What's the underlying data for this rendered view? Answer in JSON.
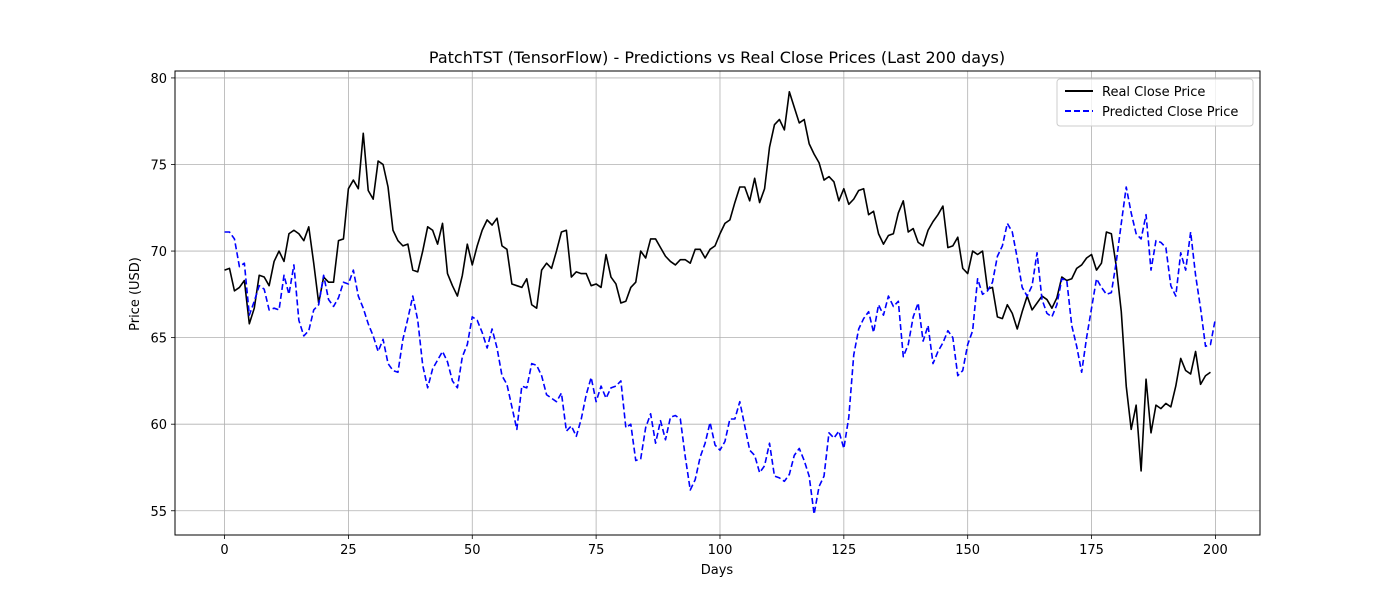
{
  "chart_data": {
    "type": "line",
    "title": "PatchTST (TensorFlow) - Predictions vs Real Close Prices (Last 200 days)",
    "xlabel": "Days",
    "ylabel": "Price (USD)",
    "xlim": [
      -10,
      209
    ],
    "ylim": [
      53.6,
      80.4
    ],
    "xticks": [
      0,
      25,
      50,
      75,
      100,
      125,
      150,
      175,
      200
    ],
    "yticks": [
      55,
      60,
      65,
      70,
      75,
      80
    ],
    "grid": true,
    "legend_position": "top-right",
    "series": [
      {
        "name": "Real Close Price",
        "color": "#000000",
        "style": "solid",
        "values": [
          68.9,
          69.0,
          67.7,
          67.9,
          68.3,
          65.8,
          66.7,
          68.6,
          68.5,
          68.0,
          69.4,
          70.0,
          69.4,
          71.0,
          71.2,
          71.0,
          70.6,
          71.4,
          69.3,
          67.0,
          68.5,
          68.2,
          68.2,
          70.6,
          70.7,
          73.6,
          74.1,
          73.6,
          76.8,
          73.5,
          73.0,
          75.2,
          75.0,
          73.7,
          71.2,
          70.6,
          70.3,
          70.4,
          68.9,
          68.8,
          70.0,
          71.4,
          71.2,
          70.4,
          71.6,
          68.7,
          68.0,
          67.4,
          68.6,
          70.4,
          69.2,
          70.3,
          71.2,
          71.8,
          71.5,
          71.9,
          70.3,
          70.1,
          68.1,
          68.0,
          67.9,
          68.4,
          66.9,
          66.7,
          68.9,
          69.3,
          69.0,
          70.0,
          71.1,
          71.2,
          68.5,
          68.8,
          68.7,
          68.7,
          68.0,
          68.1,
          67.9,
          69.8,
          68.5,
          68.1,
          67.0,
          67.1,
          67.9,
          68.2,
          70.0,
          69.6,
          70.7,
          70.7,
          70.2,
          69.7,
          69.4,
          69.2,
          69.5,
          69.5,
          69.3,
          70.1,
          70.1,
          69.6,
          70.1,
          70.3,
          71.0,
          71.6,
          71.8,
          72.8,
          73.7,
          73.7,
          72.9,
          74.2,
          72.8,
          73.6,
          76.0,
          77.3,
          77.6,
          77.0,
          79.2,
          78.3,
          77.4,
          77.6,
          76.2,
          75.6,
          75.1,
          74.1,
          74.3,
          74.0,
          72.9,
          73.6,
          72.7,
          73.0,
          73.5,
          73.6,
          72.1,
          72.3,
          71.0,
          70.4,
          70.9,
          71.0,
          72.2,
          72.9,
          71.1,
          71.3,
          70.5,
          70.3,
          71.2,
          71.7,
          72.1,
          72.6,
          70.2,
          70.3,
          70.8,
          69.0,
          68.7,
          70.0,
          69.8,
          70.0,
          67.8,
          67.9,
          66.2,
          66.1,
          66.9,
          66.4,
          65.5,
          66.5,
          67.4,
          66.6,
          67.0,
          67.4,
          67.2,
          66.7,
          67.3,
          68.5,
          68.3,
          68.4,
          69.0,
          69.2,
          69.6,
          69.8,
          68.9,
          69.3,
          71.1,
          71.0,
          69.1,
          66.5,
          62.2,
          59.7,
          61.1,
          57.3,
          62.6,
          59.5,
          61.1,
          60.9,
          61.2,
          61.0,
          62.2,
          63.8,
          63.1,
          62.9,
          64.2,
          62.3,
          62.8,
          63.0
        ]
      },
      {
        "name": "Predicted Close Price",
        "color": "#0000ff",
        "style": "dashed",
        "values": [
          71.1,
          71.1,
          70.7,
          69.1,
          69.3,
          66.3,
          67.1,
          68.0,
          67.8,
          66.6,
          66.7,
          66.6,
          68.6,
          67.5,
          69.2,
          66.0,
          65.1,
          65.4,
          66.6,
          66.9,
          68.6,
          67.2,
          66.8,
          67.3,
          68.2,
          68.1,
          68.9,
          67.4,
          66.7,
          65.8,
          65.1,
          64.2,
          64.9,
          63.5,
          63.1,
          63.0,
          64.9,
          66.1,
          67.4,
          66.0,
          63.4,
          62.1,
          63.2,
          63.7,
          64.2,
          63.6,
          62.5,
          62.1,
          63.9,
          64.6,
          66.2,
          66.0,
          65.3,
          64.4,
          65.5,
          64.4,
          62.8,
          62.3,
          61.0,
          59.7,
          62.2,
          62.1,
          63.5,
          63.4,
          62.8,
          61.7,
          61.5,
          61.3,
          61.8,
          59.6,
          59.9,
          59.3,
          60.3,
          61.7,
          62.7,
          61.3,
          62.2,
          61.5,
          62.1,
          62.2,
          62.5,
          59.8,
          60.0,
          57.9,
          58.0,
          59.8,
          60.6,
          58.9,
          60.2,
          59.1,
          60.4,
          60.5,
          60.3,
          58.1,
          56.2,
          56.8,
          58.1,
          58.9,
          60.1,
          58.8,
          58.5,
          59.0,
          60.3,
          60.3,
          61.3,
          59.9,
          58.5,
          58.2,
          57.2,
          57.6,
          58.9,
          57.0,
          56.9,
          56.7,
          57.1,
          58.2,
          58.6,
          57.9,
          57.0,
          54.8,
          56.4,
          57.0,
          59.5,
          59.2,
          59.6,
          58.6,
          60.4,
          64.0,
          65.5,
          66.1,
          66.5,
          65.3,
          66.9,
          66.3,
          67.4,
          66.8,
          67.1,
          63.9,
          64.6,
          66.2,
          67.0,
          64.8,
          65.7,
          63.5,
          64.2,
          64.7,
          65.4,
          65.0,
          62.8,
          63.1,
          64.6,
          65.4,
          68.4,
          67.5,
          67.7,
          68.2,
          69.7,
          70.3,
          71.6,
          71.1,
          69.6,
          67.9,
          67.4,
          68.0,
          69.9,
          67.2,
          66.4,
          66.2,
          66.9,
          68.4,
          68.3,
          65.7,
          64.5,
          63.0,
          65.0,
          66.7,
          68.4,
          67.9,
          67.5,
          67.6,
          69.4,
          71.6,
          73.7,
          72.2,
          71.0,
          70.7,
          72.1,
          68.9,
          70.6,
          70.5,
          70.2,
          68.0,
          67.4,
          69.9,
          68.9,
          71.1,
          68.6,
          66.7,
          64.5,
          64.6,
          66.1
        ]
      }
    ]
  }
}
